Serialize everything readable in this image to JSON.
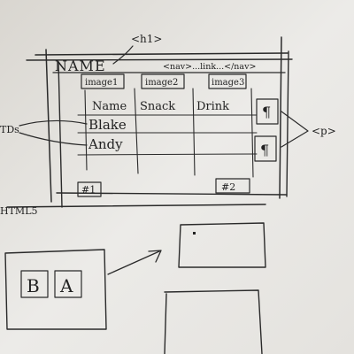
{
  "tags": {
    "h1": "<h1>",
    "nav": "<nav>...link...</nav>",
    "p": "<p>",
    "td_left": "TDs",
    "html5": "HTML5"
  },
  "header": {
    "title": "NAME"
  },
  "images": [
    "image1",
    "image2",
    "image3"
  ],
  "table": {
    "headers": [
      "Name",
      "Snack",
      "Drink"
    ],
    "rows": [
      "Blake",
      "Andy"
    ]
  },
  "paragraph_symbol": "¶",
  "footer_buttons": [
    "#1",
    "#2"
  ],
  "mockup": {
    "left_box": [
      "B",
      "A"
    ]
  }
}
